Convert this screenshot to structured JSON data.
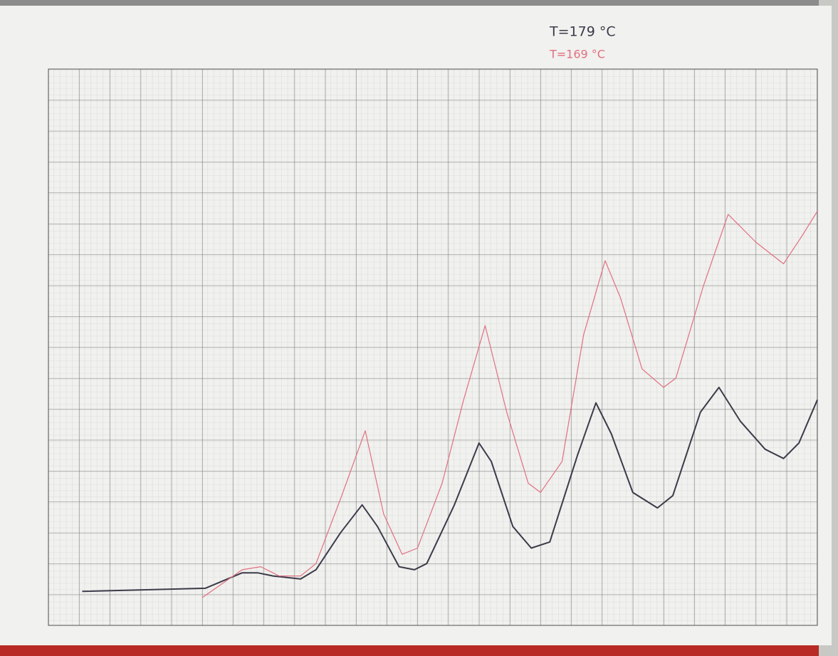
{
  "chart_data": {
    "type": "line",
    "xlim": [
      0,
      25
    ],
    "ylim": [
      0,
      18
    ],
    "series": [
      {
        "name": "T=179 °C",
        "color": "#3b3b4a",
        "x": [
          1.1,
          5.1,
          6.3,
          6.8,
          7.3,
          8.2,
          8.7,
          9.5,
          10.2,
          10.7,
          11.4,
          11.9,
          12.3,
          13.2,
          14.0,
          14.4,
          15.1,
          15.7,
          16.3,
          17.2,
          17.8,
          18.3,
          19.0,
          19.8,
          20.3,
          21.2,
          21.8,
          22.5,
          23.3,
          23.9,
          24.4,
          25.0
        ],
        "values": [
          1.1,
          1.2,
          1.7,
          1.7,
          1.6,
          1.5,
          1.8,
          3.0,
          3.9,
          3.2,
          1.9,
          1.8,
          2.0,
          3.9,
          5.9,
          5.3,
          3.2,
          2.5,
          2.7,
          5.5,
          7.2,
          6.2,
          4.3,
          3.8,
          4.2,
          6.9,
          7.7,
          6.6,
          5.7,
          5.4,
          5.9,
          7.3
        ]
      },
      {
        "name": "T=169 °C",
        "color": "#e0707f",
        "x": [
          5.0,
          6.3,
          6.9,
          7.5,
          8.2,
          8.7,
          9.5,
          10.3,
          10.9,
          11.5,
          12.0,
          12.8,
          13.5,
          14.2,
          14.9,
          15.6,
          16.0,
          16.7,
          17.4,
          18.1,
          18.6,
          19.3,
          20.0,
          20.4,
          21.3,
          22.1,
          23.0,
          23.9,
          24.5,
          25.0
        ],
        "values": [
          0.9,
          1.8,
          1.9,
          1.6,
          1.6,
          2.0,
          4.1,
          6.3,
          3.6,
          2.3,
          2.5,
          4.6,
          7.3,
          9.7,
          6.9,
          4.6,
          4.3,
          5.3,
          9.4,
          11.8,
          10.6,
          8.3,
          7.7,
          8.0,
          11.0,
          13.3,
          12.4,
          11.7,
          12.6,
          13.4
        ]
      }
    ]
  }
}
